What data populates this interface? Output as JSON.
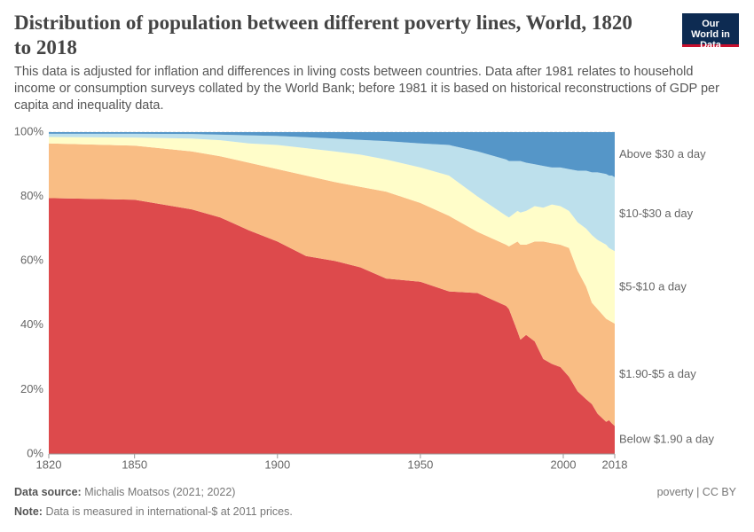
{
  "chart_data": {
    "type": "stacked-area",
    "title": "Distribution of population between different poverty lines, World, 1820 to 2018",
    "subtitle": "This data is adjusted for inflation and differences in living costs between countries. Data after 1981 relates to household income or consumption surveys collated by the World Bank; before 1981 it is based on historical reconstructions of GDP per capita and inequality data.",
    "x": [
      1820,
      1850,
      1870,
      1880,
      1890,
      1900,
      1910,
      1920,
      1929,
      1938,
      1950,
      1960,
      1970,
      1980,
      1981,
      1984,
      1985,
      1987,
      1990,
      1993,
      1996,
      1999,
      2002,
      2005,
      2008,
      2010,
      2012,
      2015,
      2016,
      2017,
      2018
    ],
    "series": [
      {
        "name": "Below $1.90 a day",
        "color": "#dd4a4c",
        "label_color": "#c9252c",
        "values": [
          79.5,
          79,
          76,
          73.5,
          69.5,
          66,
          61.5,
          60,
          58,
          54.5,
          53.5,
          50.5,
          50,
          46,
          45,
          38,
          35.5,
          37,
          35,
          29.5,
          28,
          27,
          24,
          19.5,
          17,
          15.5,
          12.5,
          10,
          10.5,
          9.5,
          8.7
        ]
      },
      {
        "name": "$1.90-$5 a day",
        "color": "#f9bd84",
        "label_color": "#e0883a",
        "values": [
          17,
          16.8,
          18,
          19,
          21,
          22.5,
          25,
          24.5,
          25,
          27,
          24.5,
          23.5,
          19,
          19,
          19.5,
          28,
          29.5,
          28,
          31,
          36.5,
          37.5,
          38,
          40,
          37.5,
          35,
          31.5,
          32.5,
          32,
          31,
          31.5,
          31.8
        ]
      },
      {
        "name": "$5-$10 a day",
        "color": "#fffdc9",
        "label_color": "#a6a35a",
        "values": [
          2,
          2.5,
          4,
          5,
          6,
          7.5,
          8.5,
          9.5,
          10,
          10,
          11,
          12.5,
          11,
          9,
          9,
          9.5,
          10,
          10.5,
          11,
          10.5,
          12,
          12,
          11.5,
          15,
          18,
          21,
          21.5,
          23,
          22.5,
          22.5,
          22.5
        ]
      },
      {
        "name": "$10-$30 a day",
        "color": "#bde0ec",
        "label_color": "#86b7cd",
        "values": [
          1,
          1.2,
          1.4,
          1.7,
          2.5,
          2.8,
          3.4,
          4,
          4.6,
          5.7,
          7.5,
          9.5,
          14,
          17.5,
          17.5,
          15.5,
          16,
          15,
          13,
          13,
          11.5,
          12,
          13,
          16,
          18,
          19.5,
          21,
          22,
          22.5,
          23,
          23
        ]
      },
      {
        "name": "Above $30 a day",
        "color": "#5596c8",
        "label_color": "#2f6fad",
        "values": [
          0.5,
          0.5,
          0.6,
          0.8,
          1,
          1.2,
          1.6,
          2,
          2.4,
          2.8,
          3.5,
          4,
          6,
          8.5,
          9,
          9,
          9,
          9.5,
          10,
          10.5,
          11,
          11,
          11.5,
          12,
          12,
          12.5,
          12.5,
          13,
          13.5,
          13.5,
          14
        ]
      }
    ],
    "xlim": [
      1820,
      2018
    ],
    "xticks": [
      1820,
      1850,
      1900,
      1950,
      2000,
      2018
    ],
    "ylim": [
      0,
      100
    ],
    "yticks": [
      {
        "value": 0,
        "label": "0%"
      },
      {
        "value": 20,
        "label": "20%"
      },
      {
        "value": 40,
        "label": "40%"
      },
      {
        "value": 60,
        "label": "60%"
      },
      {
        "value": 80,
        "label": "80%"
      },
      {
        "value": 100,
        "label": "100%"
      }
    ],
    "grid": true
  },
  "logo": "Our World in Data",
  "source_label": "Data source:",
  "source": "Michalis Moatsos (2021; 2022)",
  "note_label": "Note:",
  "note": "Data is measured in international-$ at 2011 prices.",
  "license": "poverty | CC BY"
}
